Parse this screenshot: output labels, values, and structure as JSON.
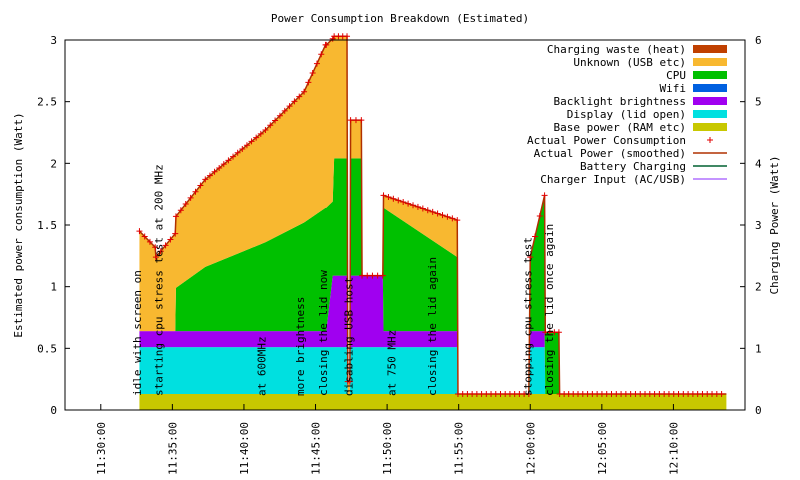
{
  "chart_data": {
    "type": "area",
    "title": "Power Consumption Breakdown (Estimated)",
    "ylabel": "Estimated power consumption (Watt)",
    "y2label": "Charging Power (Watt)",
    "xlabel": "",
    "ylim": [
      0,
      3
    ],
    "y2lim": [
      0,
      6
    ],
    "xlim_minutes": [
      -7.5,
      40
    ],
    "xticks": [
      {
        "m": -5,
        "label": "11:30:00"
      },
      {
        "m": 0,
        "label": "11:35:00"
      },
      {
        "m": 5,
        "label": "11:40:00"
      },
      {
        "m": 10,
        "label": "11:45:00"
      },
      {
        "m": 15,
        "label": "11:50:00"
      },
      {
        "m": 20,
        "label": "11:55:00"
      },
      {
        "m": 25,
        "label": "12:00:00"
      },
      {
        "m": 30,
        "label": "12:05:00"
      },
      {
        "m": 35,
        "label": "12:10:00"
      }
    ],
    "yticks": [
      "0",
      "0.5",
      "1",
      "1.5",
      "2",
      "2.5",
      "3"
    ],
    "y2ticks": [
      "0",
      "1",
      "2",
      "3",
      "4",
      "5",
      "6"
    ],
    "grid": false,
    "legend_position": "top-right",
    "x_minutes": [
      -2.3,
      -1.2,
      -1.15,
      0.2,
      0.25,
      2.3,
      6.5,
      9.2,
      10.7,
      10.75,
      11.2,
      11.3,
      12.2,
      12.25,
      12.4,
      12.45,
      13.2,
      13.25,
      14.7,
      14.75,
      19.9,
      19.95,
      24.9,
      25.0,
      26.0,
      26.05,
      27.0,
      27.05,
      28.0,
      38.7
    ],
    "series": [
      {
        "name": "Base power (RAM etc)",
        "color": "#c8c800",
        "values": [
          0.13,
          0.13,
          0.13,
          0.13,
          0.13,
          0.13,
          0.13,
          0.13,
          0.13,
          0.13,
          0.13,
          0.13,
          0.13,
          0.13,
          0.13,
          0.13,
          0.13,
          0.13,
          0.13,
          0.13,
          0.13,
          0.13,
          0.13,
          0.13,
          0.13,
          0.13,
          0.13,
          0.13,
          0.13,
          0.13
        ]
      },
      {
        "name": "Display (lid open)",
        "color": "#00e0e0",
        "values": [
          0.38,
          0.38,
          0.38,
          0.38,
          0.38,
          0.38,
          0.38,
          0.38,
          0.38,
          0.38,
          0.38,
          0.38,
          0.38,
          0.0,
          0.0,
          0.38,
          0.38,
          0.38,
          0.38,
          0.38,
          0.38,
          0.0,
          0.0,
          0.38,
          0.38,
          0.0,
          0.0,
          0.0,
          0.0,
          0.0
        ]
      },
      {
        "name": "Backlight brightness",
        "color": "#a000f0",
        "values": [
          0.13,
          0.13,
          0.13,
          0.13,
          0.13,
          0.13,
          0.13,
          0.13,
          0.13,
          0.13,
          0.58,
          0.58,
          0.58,
          0.0,
          0.0,
          0.58,
          0.58,
          0.58,
          0.58,
          0.13,
          0.13,
          0.0,
          0.0,
          0.13,
          0.13,
          0.0,
          0.0,
          0.0,
          0.0,
          0.0
        ]
      },
      {
        "name": "Wifi",
        "color": "#0060e0",
        "values": [
          0,
          0,
          0,
          0,
          0,
          0,
          0,
          0,
          0,
          0,
          0,
          0,
          0,
          0,
          0,
          0,
          0,
          0,
          0,
          0,
          0,
          0,
          0,
          0,
          0,
          0,
          0,
          0,
          0,
          0
        ]
      },
      {
        "name": "CPU",
        "color": "#00c000",
        "values": [
          0.0,
          0.0,
          0.0,
          0.0,
          0.35,
          0.52,
          0.72,
          0.88,
          1.0,
          1.0,
          0.6,
          0.95,
          0.95,
          0.0,
          0.0,
          0.95,
          0.95,
          0.0,
          0.0,
          1.0,
          0.6,
          0.0,
          0.0,
          0.6,
          1.1,
          0.5,
          0.5,
          0.0,
          0.0,
          0.0
        ]
      },
      {
        "name": "Unknown (USB etc)",
        "color": "#f8b830",
        "values": [
          0.81,
          0.68,
          0.6,
          0.79,
          0.58,
          0.71,
          0.91,
          1.06,
          1.32,
          1.32,
          1.32,
          0.99,
          0.99,
          0.1,
          0.1,
          0.31,
          0.31,
          0.0,
          0.0,
          0.1,
          0.3,
          0.0,
          0.0,
          0.0,
          0.0,
          0.0,
          0.0,
          0.0,
          0.0,
          0.0
        ]
      },
      {
        "name": "Charging waste (heat)",
        "color": "#c04000",
        "values": [
          0,
          0,
          0,
          0,
          0,
          0,
          0,
          0,
          0,
          0,
          0,
          0,
          0,
          0,
          0,
          0,
          0,
          0,
          0,
          0,
          0,
          0,
          0,
          0,
          0,
          0,
          0,
          0,
          0,
          0
        ]
      }
    ],
    "overlay_series": [
      {
        "name": "Actual Power Consumption",
        "style": "points",
        "color": "#e00000"
      },
      {
        "name": "Actual Power (smoothed)",
        "style": "line",
        "color": "#b03000"
      },
      {
        "name": "Battery Charging",
        "style": "line",
        "color": "#006030",
        "axis": "y2"
      },
      {
        "name": "Charger Input (AC/USB)",
        "style": "line",
        "color": "#b070ff",
        "axis": "y2"
      }
    ],
    "annotations": [
      {
        "m": -2.2,
        "text": "idle with screen on"
      },
      {
        "m": -0.7,
        "text": "starting cpu stress test at 200 MHz"
      },
      {
        "m": 6.5,
        "text": "at 600MHz"
      },
      {
        "m": 9.2,
        "text": "more brightness"
      },
      {
        "m": 10.8,
        "text": "closing the lid now"
      },
      {
        "m": 12.6,
        "text": "disabling USB host"
      },
      {
        "m": 15.6,
        "text": "at 750 MHz"
      },
      {
        "m": 18.4,
        "text": "closing the lid again"
      },
      {
        "m": 25.1,
        "text": "stopping cpu stress test"
      },
      {
        "m": 26.6,
        "text": "closing the lid once again"
      }
    ]
  }
}
